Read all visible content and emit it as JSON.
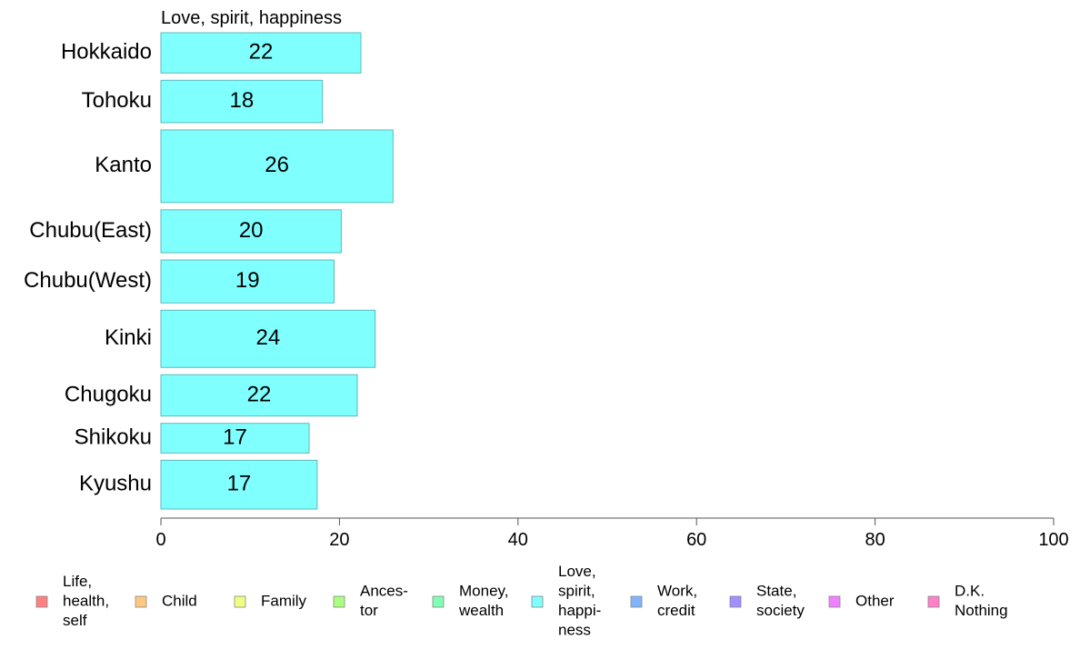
{
  "chart_data": {
    "type": "bar",
    "orientation": "horizontal",
    "title": "Love, spirit, happiness",
    "categories": [
      "Hokkaido",
      "Tohoku",
      "Kanto",
      "Chubu(East)",
      "Chubu(West)",
      "Kinki",
      "Chugoku",
      "Shikoku",
      "Kyushu"
    ],
    "values": [
      22.4,
      18.1,
      26.0,
      20.2,
      19.4,
      24.0,
      22.0,
      16.6,
      17.5
    ],
    "value_labels": [
      "22",
      "18",
      "26",
      "20",
      "19",
      "24",
      "22",
      "17",
      "17"
    ],
    "relative_weights": [
      0.76,
      0.8,
      1.37,
      0.81,
      0.81,
      1.08,
      0.78,
      0.56,
      0.92
    ],
    "xlim": [
      0,
      100
    ],
    "xticks": [
      "0",
      "20",
      "40",
      "60",
      "80",
      "100"
    ],
    "bar_color": "#80ffff",
    "bar_stroke": "#5fb8b8",
    "grid": false,
    "legend_position": "bottom",
    "legend": [
      {
        "lines": [
          "Life,",
          "health,",
          "self"
        ],
        "color": "#ff8080"
      },
      {
        "lines": [
          "Child"
        ],
        "color": "#ffc880"
      },
      {
        "lines": [
          "Family"
        ],
        "color": "#f0ff80"
      },
      {
        "lines": [
          "Ances-",
          "tor"
        ],
        "color": "#aaff80"
      },
      {
        "lines": [
          "Money,",
          "wealth"
        ],
        "color": "#80ffb4"
      },
      {
        "lines": [
          "Love,",
          "spirit,",
          "happi-",
          "ness"
        ],
        "color": "#80ffff"
      },
      {
        "lines": [
          "Work,",
          "credit"
        ],
        "color": "#80b4ff"
      },
      {
        "lines": [
          "State,",
          "society"
        ],
        "color": "#a090ff"
      },
      {
        "lines": [
          "Other"
        ],
        "color": "#f080ff"
      },
      {
        "lines": [
          "D.K.",
          "Nothing"
        ],
        "color": "#ff80c8"
      }
    ]
  }
}
